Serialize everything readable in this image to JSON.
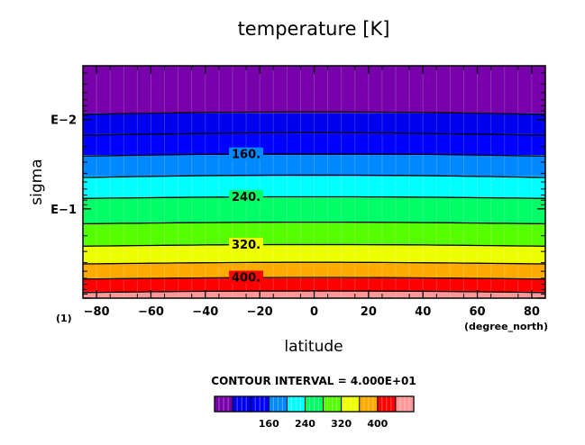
{
  "chart_data": {
    "type": "contour",
    "title": "temperature [K]",
    "xlabel": "latitude",
    "ylabel": "sigma",
    "x_unit_label": "(degree_north)",
    "y_unit_label": "(1)",
    "xlim": [
      -85,
      85
    ],
    "ylim_sigma_log": [
      0.0025,
      1.0
    ],
    "x_ticks": [
      -80,
      -60,
      -40,
      -20,
      0,
      20,
      40,
      60,
      80
    ],
    "y_ticks": [
      {
        "label": "E−2",
        "value": 0.01
      },
      {
        "label": "E−1",
        "value": 0.1
      }
    ],
    "contour_interval_text": "CONTOUR INTERVAL = 4.000E+01",
    "contour_labels": [
      "160.",
      "240.",
      "320.",
      "400."
    ],
    "colorbar_tick_labels": [
      "160",
      "240",
      "320",
      "400"
    ],
    "color_levels": [
      {
        "min": 40,
        "max": 80,
        "color": "#7700aa"
      },
      {
        "min": 80,
        "max": 120,
        "color": "#0000ee"
      },
      {
        "min": 120,
        "max": 160,
        "color": "#0000ff"
      },
      {
        "min": 160,
        "max": 200,
        "color": "#0088ff"
      },
      {
        "min": 200,
        "max": 240,
        "color": "#00ffff"
      },
      {
        "min": 240,
        "max": 280,
        "color": "#00ff66"
      },
      {
        "min": 280,
        "max": 320,
        "color": "#55ff00"
      },
      {
        "min": 320,
        "max": 360,
        "color": "#eeff00"
      },
      {
        "min": 360,
        "max": 400,
        "color": "#ffaa00"
      },
      {
        "min": 400,
        "max": 440,
        "color": "#ff0000"
      },
      {
        "min": 440,
        "max": 480,
        "color": "#ff9999"
      }
    ],
    "contour_levels": [
      80,
      120,
      160,
      200,
      240,
      280,
      320,
      360,
      400,
      440
    ]
  }
}
